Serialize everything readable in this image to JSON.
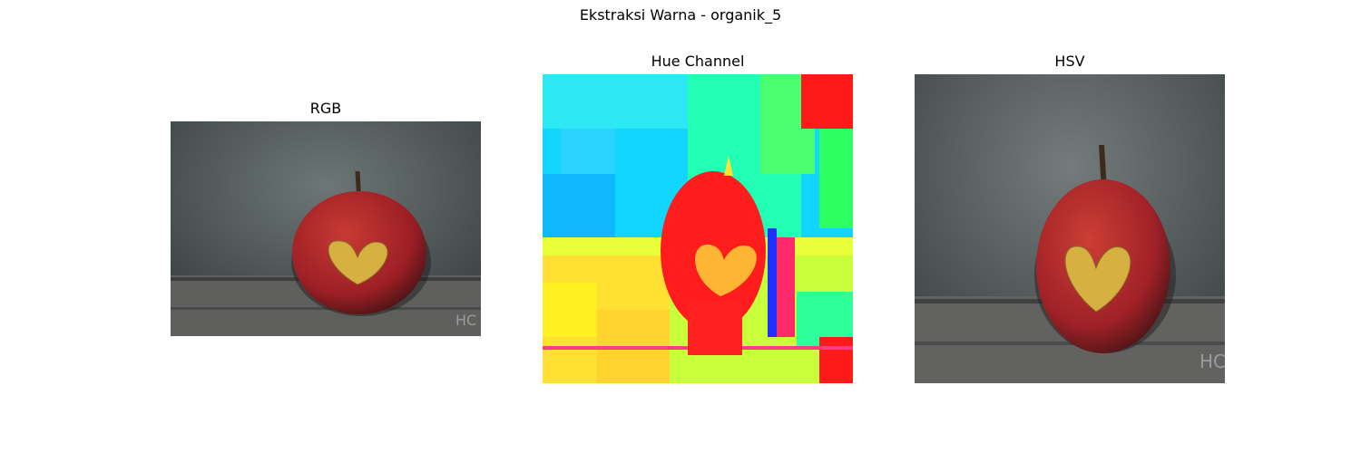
{
  "figure": {
    "suptitle": "Ekstraksi Warna - organik_5",
    "panels": [
      {
        "title": "RGB",
        "watermark": "HC"
      },
      {
        "title": "Hue Channel"
      },
      {
        "title": "HSV",
        "watermark": "HC"
      }
    ]
  },
  "colors": {
    "background_wall": "#4b5253",
    "table": "#6a6a68",
    "apple": "#b5262a",
    "heart": "#d7b441",
    "hue_cyan": "#15d8ff",
    "hue_green": "#1fff8f",
    "hue_red": "#ff1a1a",
    "hue_yellow": "#e5ff33"
  }
}
